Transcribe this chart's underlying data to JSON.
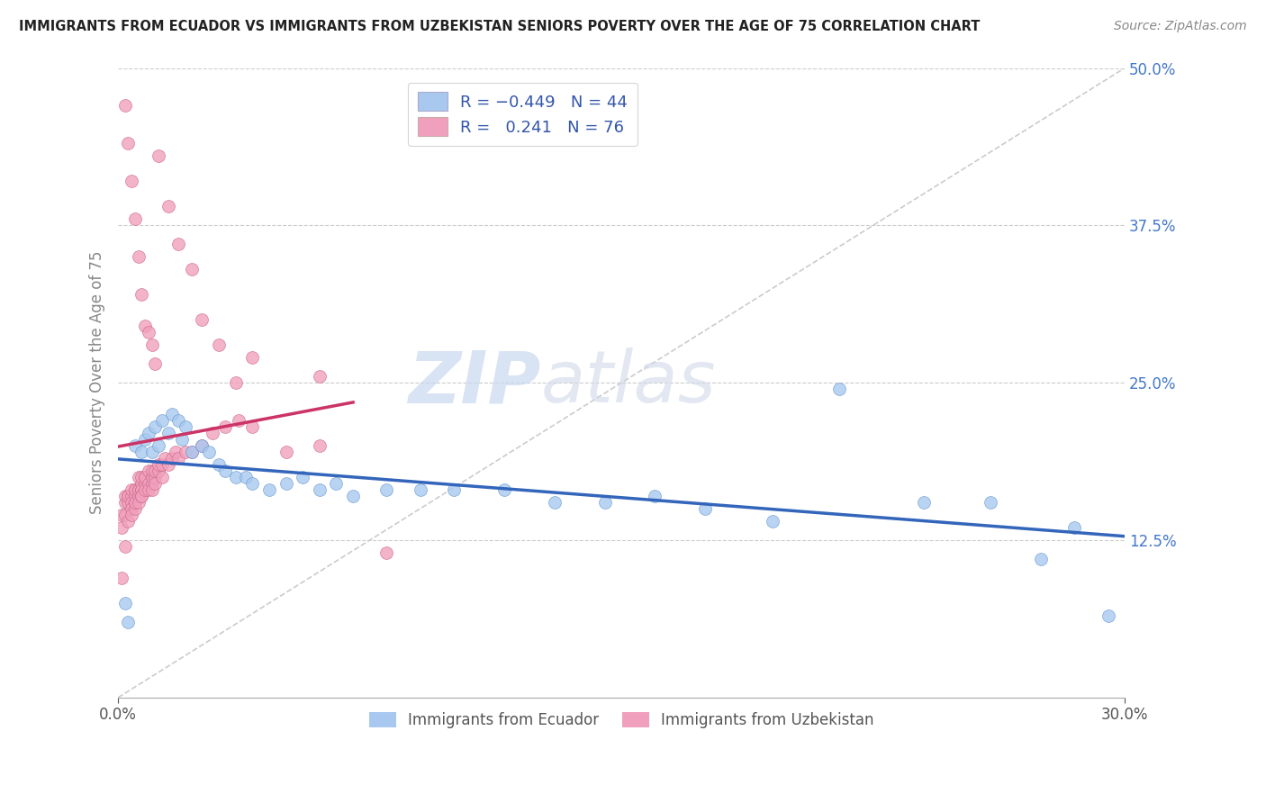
{
  "title": "IMMIGRANTS FROM ECUADOR VS IMMIGRANTS FROM UZBEKISTAN SENIORS POVERTY OVER THE AGE OF 75 CORRELATION CHART",
  "source": "Source: ZipAtlas.com",
  "ylabel": "Seniors Poverty Over the Age of 75",
  "xlim": [
    0.0,
    0.3
  ],
  "ylim": [
    0.0,
    0.5
  ],
  "xticklabels": [
    "0.0%",
    "30.0%"
  ],
  "ytick_positions": [
    0.125,
    0.25,
    0.375,
    0.5
  ],
  "ytick_labels": [
    "12.5%",
    "25.0%",
    "37.5%",
    "50.0%"
  ],
  "ecuador_color": "#a8c8f0",
  "ecuador_edge_color": "#6699cc",
  "uzbekistan_color": "#f0a0bc",
  "uzbekistan_edge_color": "#cc6688",
  "ecuador_line_color": "#3366bb",
  "uzbekistan_line_color": "#cc3366",
  "watermark_zip": "ZIP",
  "watermark_atlas": "atlas",
  "ecuador_R": -0.449,
  "ecuador_N": 44,
  "uzbekistan_R": 0.241,
  "uzbekistan_N": 76,
  "ecuador_points_x": [
    0.002,
    0.003,
    0.005,
    0.007,
    0.008,
    0.009,
    0.01,
    0.011,
    0.012,
    0.013,
    0.015,
    0.016,
    0.018,
    0.019,
    0.02,
    0.022,
    0.025,
    0.027,
    0.03,
    0.032,
    0.035,
    0.038,
    0.04,
    0.045,
    0.05,
    0.055,
    0.06,
    0.065,
    0.07,
    0.08,
    0.09,
    0.1,
    0.115,
    0.13,
    0.145,
    0.16,
    0.175,
    0.195,
    0.215,
    0.24,
    0.26,
    0.275,
    0.285,
    0.295
  ],
  "ecuador_points_y": [
    0.075,
    0.06,
    0.2,
    0.195,
    0.205,
    0.21,
    0.195,
    0.215,
    0.2,
    0.22,
    0.21,
    0.225,
    0.22,
    0.205,
    0.215,
    0.195,
    0.2,
    0.195,
    0.185,
    0.18,
    0.175,
    0.175,
    0.17,
    0.165,
    0.17,
    0.175,
    0.165,
    0.17,
    0.16,
    0.165,
    0.165,
    0.165,
    0.165,
    0.155,
    0.155,
    0.16,
    0.15,
    0.14,
    0.245,
    0.155,
    0.155,
    0.11,
    0.135,
    0.065
  ],
  "uzbekistan_points_x": [
    0.001,
    0.001,
    0.001,
    0.002,
    0.002,
    0.002,
    0.002,
    0.003,
    0.003,
    0.003,
    0.003,
    0.004,
    0.004,
    0.004,
    0.004,
    0.004,
    0.005,
    0.005,
    0.005,
    0.005,
    0.005,
    0.005,
    0.006,
    0.006,
    0.006,
    0.006,
    0.006,
    0.007,
    0.007,
    0.007,
    0.007,
    0.007,
    0.007,
    0.008,
    0.008,
    0.008,
    0.008,
    0.009,
    0.009,
    0.009,
    0.01,
    0.01,
    0.01,
    0.01,
    0.01,
    0.011,
    0.011,
    0.011,
    0.012,
    0.012,
    0.013,
    0.013,
    0.014,
    0.015,
    0.016,
    0.017,
    0.018,
    0.02,
    0.022,
    0.025,
    0.028,
    0.032,
    0.036,
    0.04,
    0.05,
    0.06,
    0.012,
    0.015,
    0.018,
    0.022,
    0.025,
    0.03,
    0.035,
    0.04,
    0.06,
    0.08
  ],
  "uzbekistan_points_y": [
    0.135,
    0.095,
    0.145,
    0.155,
    0.145,
    0.16,
    0.12,
    0.16,
    0.155,
    0.16,
    0.14,
    0.16,
    0.155,
    0.15,
    0.145,
    0.165,
    0.165,
    0.155,
    0.15,
    0.16,
    0.165,
    0.155,
    0.165,
    0.16,
    0.165,
    0.175,
    0.155,
    0.165,
    0.17,
    0.165,
    0.16,
    0.175,
    0.16,
    0.17,
    0.175,
    0.165,
    0.175,
    0.17,
    0.18,
    0.165,
    0.175,
    0.17,
    0.175,
    0.165,
    0.18,
    0.175,
    0.17,
    0.18,
    0.18,
    0.185,
    0.175,
    0.185,
    0.19,
    0.185,
    0.19,
    0.195,
    0.19,
    0.195,
    0.195,
    0.2,
    0.21,
    0.215,
    0.22,
    0.215,
    0.195,
    0.2,
    0.43,
    0.39,
    0.36,
    0.34,
    0.3,
    0.28,
    0.25,
    0.27,
    0.255,
    0.115
  ],
  "uzbekistan_extra_high_x": [
    0.002,
    0.003,
    0.004,
    0.005,
    0.006,
    0.007,
    0.008,
    0.009,
    0.01,
    0.011
  ],
  "uzbekistan_extra_high_y": [
    0.47,
    0.44,
    0.41,
    0.38,
    0.35,
    0.32,
    0.295,
    0.29,
    0.28,
    0.265
  ]
}
